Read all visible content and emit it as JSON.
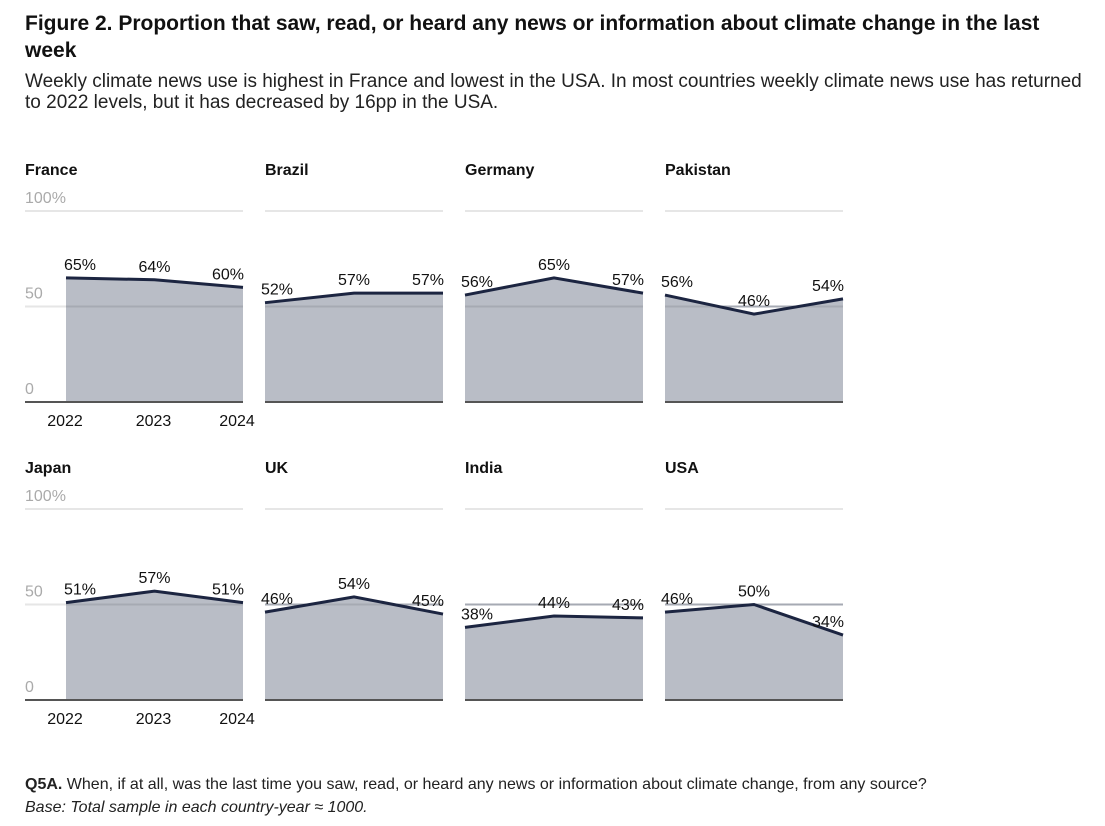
{
  "figure": {
    "title": "Figure 2. Proportion that saw, read, or heard any news or information about climate change in the last week",
    "subtitle": "Weekly climate news use is highest in France and lowest in the USA. In most countries weekly climate news use has returned to 2022 levels, but it has decreased by 16pp in the USA.",
    "question_label": "Q5A.",
    "question_text": " When, if at all, was the last time you saw, read, or heard any news or information about climate change, from any source?",
    "base": "Base: Total sample in each country-year ≈ 1000."
  },
  "colors": {
    "line": "#1c2541",
    "area": "#b9bdc6",
    "gridline": "#e6e6e6",
    "axis": "#555555",
    "tick_text": "#aaaaaa"
  },
  "chart_data": {
    "type": "area",
    "layout": "small-multiples 2x4",
    "x": [
      "2022",
      "2023",
      "2024"
    ],
    "ylim": [
      0,
      100
    ],
    "yticks": [
      {
        "value": 0,
        "label": "0"
      },
      {
        "value": 50,
        "label": "50"
      },
      {
        "value": 100,
        "label": "100%"
      }
    ],
    "grid": true,
    "panels": [
      {
        "name": "France",
        "values": [
          65,
          64,
          60
        ],
        "labels": [
          "65%",
          "64%",
          "60%"
        ]
      },
      {
        "name": "Brazil",
        "values": [
          52,
          57,
          57
        ],
        "labels": [
          "52%",
          "57%",
          "57%"
        ]
      },
      {
        "name": "Germany",
        "values": [
          56,
          65,
          57
        ],
        "labels": [
          "56%",
          "65%",
          "57%"
        ]
      },
      {
        "name": "Pakistan",
        "values": [
          56,
          46,
          54
        ],
        "labels": [
          "56%",
          "46%",
          "54%"
        ]
      },
      {
        "name": "Japan",
        "values": [
          51,
          57,
          51
        ],
        "labels": [
          "51%",
          "57%",
          "51%"
        ]
      },
      {
        "name": "UK",
        "values": [
          46,
          54,
          45
        ],
        "labels": [
          "46%",
          "54%",
          "45%"
        ]
      },
      {
        "name": "India",
        "values": [
          38,
          44,
          43
        ],
        "labels": [
          "38%",
          "44%",
          "43%"
        ]
      },
      {
        "name": "USA",
        "values": [
          46,
          50,
          34
        ],
        "labels": [
          "46%",
          "50%",
          "34%"
        ]
      }
    ]
  }
}
